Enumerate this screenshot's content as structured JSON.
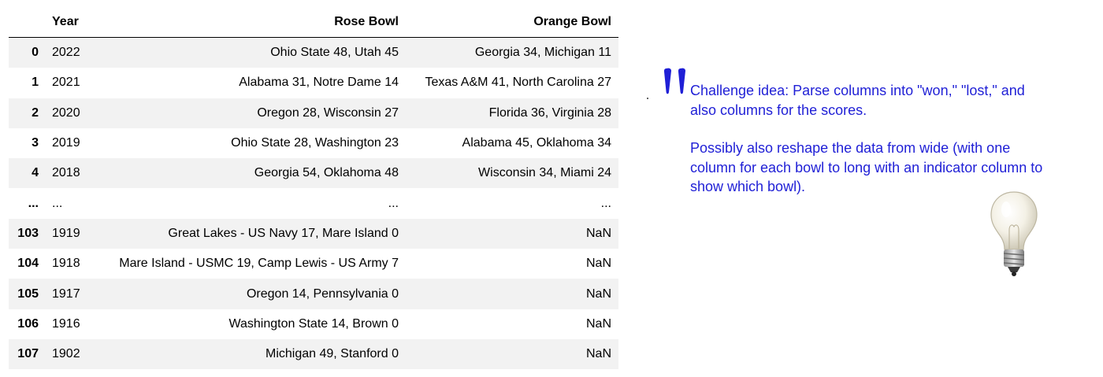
{
  "table": {
    "headers": {
      "index": "",
      "year": "Year",
      "rose": "Rose Bowl",
      "orange": "Orange Bowl"
    },
    "rows": [
      {
        "idx": "0",
        "year": "2022",
        "rose": "Ohio State 48, Utah 45",
        "orange": "Georgia 34, Michigan 11"
      },
      {
        "idx": "1",
        "year": "2021",
        "rose": "Alabama 31, Notre Dame 14",
        "orange": "Texas A&M 41, North Carolina 27"
      },
      {
        "idx": "2",
        "year": "2020",
        "rose": "Oregon 28, Wisconsin 27",
        "orange": "Florida 36, Virginia 28"
      },
      {
        "idx": "3",
        "year": "2019",
        "rose": "Ohio State 28, Washington 23",
        "orange": "Alabama 45, Oklahoma 34"
      },
      {
        "idx": "4",
        "year": "2018",
        "rose": "Georgia 54, Oklahoma 48",
        "orange": "Wisconsin 34, Miami 24"
      },
      {
        "idx": "...",
        "year": "...",
        "rose": "...",
        "orange": "..."
      },
      {
        "idx": "103",
        "year": "1919",
        "rose": "Great Lakes - US Navy 17, Mare Island 0",
        "orange": "NaN"
      },
      {
        "idx": "104",
        "year": "1918",
        "rose": "Mare Island - USMC 19, Camp Lewis - US Army 7",
        "orange": "NaN"
      },
      {
        "idx": "105",
        "year": "1917",
        "rose": "Oregon 14, Pennsylvania 0",
        "orange": "NaN"
      },
      {
        "idx": "106",
        "year": "1916",
        "rose": "Washington State 14, Brown 0",
        "orange": "NaN"
      },
      {
        "idx": "107",
        "year": "1902",
        "rose": "Michigan 49, Stanford 0",
        "orange": "NaN"
      }
    ]
  },
  "annotation": {
    "paragraph1": "Challenge idea: Parse columns into \"won,\" \"lost,\" and also columns for the scores.",
    "paragraph2": "Possibly also reshape the data from wide (with one column for each bowl to long with an indicator column to show which bowl).",
    "quote_icon": "quote-mark-icon",
    "bulb_icon": "lightbulb-icon"
  },
  "colors": {
    "annotation_text": "#1f1fd6",
    "stripe": "#f2f2f2"
  }
}
